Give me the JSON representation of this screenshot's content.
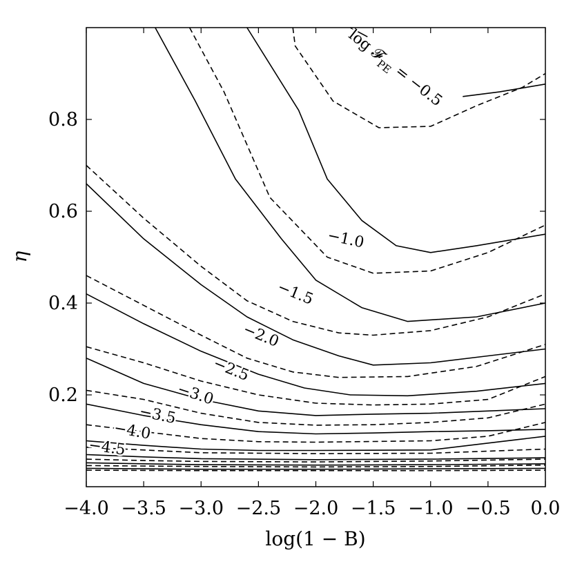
{
  "chart_data": {
    "type": "contour",
    "xlabel": "log(1 − B)",
    "ylabel": "η",
    "xlim": [
      -4.0,
      0.0
    ],
    "ylim": [
      0.0,
      1.0
    ],
    "x_ticks": [
      "−4.0",
      "−3.5",
      "−3.0",
      "−2.5",
      "−2.0",
      "−1.5",
      "−1.0",
      "−0.5",
      "0.0"
    ],
    "y_ticks": [
      "0.2",
      "0.4",
      "0.6",
      "0.8"
    ],
    "grid": false,
    "label_prefix": "log 𝓕",
    "label_sub": "PE",
    "label_eq": " = ",
    "series": [
      {
        "style": "dashed",
        "points": [
          [
            -2.2,
            1.0
          ],
          [
            -2.18,
            0.96
          ],
          [
            -1.85,
            0.84
          ],
          [
            -1.45,
            0.782
          ],
          [
            -1.0,
            0.785
          ],
          [
            -0.6,
            0.83
          ],
          [
            -0.2,
            0.87
          ],
          [
            0.0,
            0.9
          ]
        ]
      },
      {
        "style": "solid",
        "points": [
          [
            -1.7,
            1.0
          ],
          [
            -1.55,
            0.98
          ]
        ]
      },
      {
        "style": "solid",
        "points": [
          [
            -0.72,
            0.85
          ],
          [
            -0.4,
            0.86
          ],
          [
            0.0,
            0.877
          ]
        ]
      },
      {
        "style": "solid",
        "points": [
          [
            -2.6,
            1.0
          ],
          [
            -2.15,
            0.82
          ],
          [
            -1.9,
            0.67
          ],
          [
            -1.6,
            0.58
          ],
          [
            -1.3,
            0.525
          ],
          [
            -1.0,
            0.51
          ],
          [
            -0.6,
            0.525
          ],
          [
            0.0,
            0.55
          ]
        ]
      },
      {
        "style": "dashed",
        "points": [
          [
            -3.1,
            1.0
          ],
          [
            -2.8,
            0.86
          ],
          [
            -2.4,
            0.63
          ],
          [
            -1.9,
            0.5
          ],
          [
            -1.5,
            0.465
          ],
          [
            -1.0,
            0.47
          ],
          [
            -0.5,
            0.51
          ],
          [
            0.0,
            0.57
          ]
        ]
      },
      {
        "style": "solid",
        "points": [
          [
            -3.4,
            1.0
          ],
          [
            -3.05,
            0.84
          ],
          [
            -2.7,
            0.67
          ],
          [
            -2.3,
            0.54
          ],
          [
            -2.0,
            0.45
          ],
          [
            -1.6,
            0.39
          ],
          [
            -1.2,
            0.36
          ],
          [
            -0.6,
            0.37
          ],
          [
            0.0,
            0.4
          ]
        ]
      },
      {
        "style": "dashed",
        "points": [
          [
            -4.0,
            0.7
          ],
          [
            -3.5,
            0.585
          ],
          [
            -3.0,
            0.48
          ],
          [
            -2.6,
            0.405
          ],
          [
            -2.2,
            0.36
          ],
          [
            -1.8,
            0.335
          ],
          [
            -1.5,
            0.33
          ],
          [
            -1.0,
            0.34
          ],
          [
            -0.5,
            0.37
          ],
          [
            0.0,
            0.42
          ]
        ]
      },
      {
        "style": "solid",
        "points": [
          [
            -4.0,
            0.66
          ],
          [
            -3.5,
            0.54
          ],
          [
            -3.0,
            0.44
          ],
          [
            -2.6,
            0.37
          ],
          [
            -2.2,
            0.32
          ],
          [
            -1.8,
            0.285
          ],
          [
            -1.5,
            0.265
          ],
          [
            -1.0,
            0.27
          ],
          [
            -0.5,
            0.285
          ],
          [
            0.0,
            0.3
          ]
        ]
      },
      {
        "style": "dashed",
        "points": [
          [
            -4.0,
            0.46
          ],
          [
            -3.5,
            0.395
          ],
          [
            -3.0,
            0.33
          ],
          [
            -2.6,
            0.28
          ],
          [
            -2.2,
            0.25
          ],
          [
            -1.8,
            0.238
          ],
          [
            -1.2,
            0.24
          ],
          [
            -0.6,
            0.262
          ],
          [
            0.0,
            0.31
          ]
        ]
      },
      {
        "style": "solid",
        "points": [
          [
            -4.0,
            0.42
          ],
          [
            -3.5,
            0.355
          ],
          [
            -3.0,
            0.295
          ],
          [
            -2.5,
            0.245
          ],
          [
            -2.1,
            0.215
          ],
          [
            -1.7,
            0.2
          ],
          [
            -1.2,
            0.198
          ],
          [
            -0.6,
            0.208
          ],
          [
            0.0,
            0.225
          ]
        ]
      },
      {
        "style": "dashed",
        "points": [
          [
            -4.0,
            0.305
          ],
          [
            -3.5,
            0.27
          ],
          [
            -3.0,
            0.23
          ],
          [
            -2.5,
            0.2
          ],
          [
            -2.0,
            0.182
          ],
          [
            -1.5,
            0.178
          ],
          [
            -1.0,
            0.18
          ],
          [
            -0.5,
            0.19
          ],
          [
            0.0,
            0.24
          ]
        ]
      },
      {
        "style": "solid",
        "points": [
          [
            -4.0,
            0.28
          ],
          [
            -3.5,
            0.225
          ],
          [
            -3.0,
            0.19
          ],
          [
            -2.5,
            0.165
          ],
          [
            -2.0,
            0.155
          ],
          [
            -1.5,
            0.158
          ],
          [
            -1.0,
            0.16
          ],
          [
            -0.5,
            0.165
          ],
          [
            0.0,
            0.17
          ]
        ]
      },
      {
        "style": "dashed",
        "points": [
          [
            -4.0,
            0.21
          ],
          [
            -3.5,
            0.19
          ],
          [
            -3.0,
            0.16
          ],
          [
            -2.5,
            0.14
          ],
          [
            -2.0,
            0.134
          ],
          [
            -1.5,
            0.135
          ],
          [
            -1.0,
            0.14
          ],
          [
            -0.5,
            0.15
          ],
          [
            0.0,
            0.18
          ]
        ]
      },
      {
        "style": "solid",
        "points": [
          [
            -4.0,
            0.18
          ],
          [
            -3.5,
            0.155
          ],
          [
            -3.0,
            0.135
          ],
          [
            -2.5,
            0.12
          ],
          [
            -2.0,
            0.115
          ],
          [
            -1.5,
            0.117
          ],
          [
            -1.0,
            0.12
          ],
          [
            -0.5,
            0.122
          ],
          [
            0.0,
            0.125
          ]
        ]
      },
      {
        "style": "dashed",
        "points": [
          [
            -4.0,
            0.135
          ],
          [
            -3.5,
            0.12
          ],
          [
            -3.0,
            0.105
          ],
          [
            -2.5,
            0.098
          ],
          [
            -2.0,
            0.097
          ],
          [
            -1.0,
            0.1
          ],
          [
            -0.5,
            0.11
          ],
          [
            0.0,
            0.14
          ]
        ]
      },
      {
        "style": "solid",
        "points": [
          [
            -4.0,
            0.1
          ],
          [
            -3.5,
            0.09
          ],
          [
            -3.0,
            0.082
          ],
          [
            -2.5,
            0.079
          ],
          [
            -2.0,
            0.079
          ],
          [
            -1.0,
            0.08
          ],
          [
            0.0,
            0.11
          ]
        ]
      },
      {
        "style": "dashed",
        "points": [
          [
            -4.0,
            0.086
          ],
          [
            -3.5,
            0.08
          ],
          [
            -3.0,
            0.074
          ],
          [
            -2.0,
            0.072
          ],
          [
            -1.0,
            0.073
          ],
          [
            0.0,
            0.082
          ]
        ]
      },
      {
        "style": "solid",
        "points": [
          [
            -4.0,
            0.07
          ],
          [
            -3.5,
            0.065
          ],
          [
            -3.0,
            0.061
          ],
          [
            -2.0,
            0.059
          ],
          [
            -1.0,
            0.06
          ],
          [
            0.0,
            0.063
          ]
        ]
      },
      {
        "style": "dashed",
        "points": [
          [
            -4.0,
            0.06
          ],
          [
            -3.5,
            0.057
          ],
          [
            -3.0,
            0.055
          ],
          [
            -2.0,
            0.054
          ],
          [
            -1.0,
            0.056
          ],
          [
            0.0,
            0.06
          ]
        ]
      },
      {
        "style": "solid",
        "points": [
          [
            -4.0,
            0.052
          ],
          [
            -3.5,
            0.05
          ],
          [
            -3.0,
            0.048
          ],
          [
            -2.0,
            0.047
          ],
          [
            -1.0,
            0.048
          ],
          [
            0.0,
            0.05
          ]
        ]
      },
      {
        "style": "dashed",
        "points": [
          [
            -4.0,
            0.046
          ],
          [
            -3.0,
            0.044
          ],
          [
            -2.0,
            0.043
          ],
          [
            -1.0,
            0.044
          ],
          [
            0.0,
            0.047
          ]
        ]
      },
      {
        "style": "solid",
        "points": [
          [
            -4.0,
            0.04
          ],
          [
            -3.0,
            0.038
          ],
          [
            -2.0,
            0.038
          ],
          [
            -1.0,
            0.039
          ],
          [
            0.0,
            0.04
          ]
        ]
      },
      {
        "style": "dashed",
        "points": [
          [
            -4.0,
            0.036
          ],
          [
            -3.0,
            0.035
          ],
          [
            -2.0,
            0.035
          ],
          [
            -1.0,
            0.035
          ],
          [
            0.0,
            0.036
          ]
        ]
      }
    ],
    "contour_labels": [
      {
        "text": "−0.5",
        "x": -0.92,
        "y": 0.835,
        "angle": 38,
        "prefixed": true
      },
      {
        "text": "−1.0",
        "x": -1.74,
        "y": 0.538,
        "angle": 12,
        "prefixed": false
      },
      {
        "text": "−1.5",
        "x": -2.18,
        "y": 0.42,
        "angle": 22,
        "prefixed": false
      },
      {
        "text": "−2.0",
        "x": -2.48,
        "y": 0.328,
        "angle": 22,
        "prefixed": false
      },
      {
        "text": "−2.5",
        "x": -2.74,
        "y": 0.254,
        "angle": 22,
        "prefixed": false
      },
      {
        "text": "−3.0",
        "x": -3.05,
        "y": 0.2,
        "angle": 18,
        "prefixed": false
      },
      {
        "text": "−3.5",
        "x": -3.38,
        "y": 0.155,
        "angle": 12,
        "prefixed": false
      },
      {
        "text": "−4.0",
        "x": -3.6,
        "y": 0.12,
        "angle": 10,
        "prefixed": false
      },
      {
        "text": "−4.5",
        "x": -3.82,
        "y": 0.084,
        "angle": 8,
        "prefixed": false
      }
    ]
  }
}
